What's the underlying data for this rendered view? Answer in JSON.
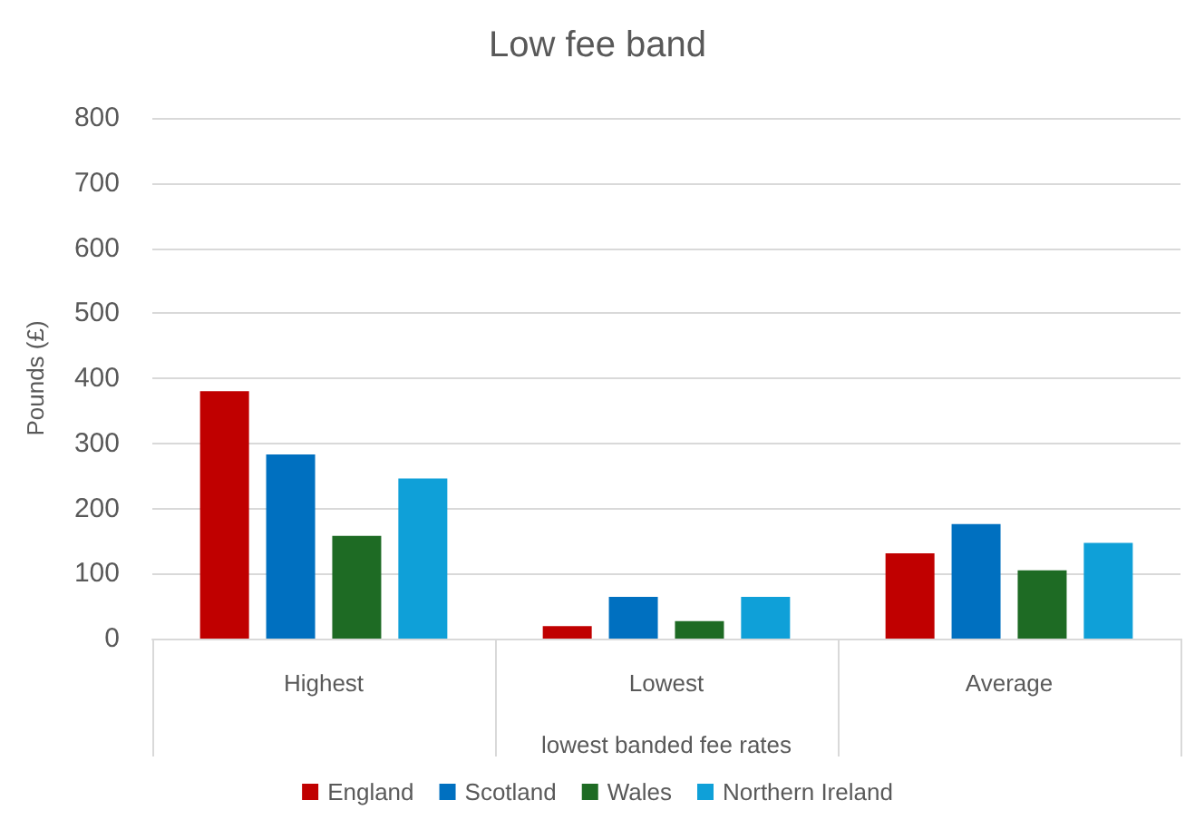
{
  "chart_data": {
    "type": "bar",
    "title": "Low fee band",
    "xlabel": "lowest banded fee rates",
    "ylabel": "Pounds (£)",
    "categories": [
      "Highest",
      "Lowest",
      "Average"
    ],
    "series": [
      {
        "name": "England",
        "color": "#c00000",
        "values": [
          380,
          19,
          131
        ]
      },
      {
        "name": "Scotland",
        "color": "#0070c0",
        "values": [
          283,
          64,
          176
        ]
      },
      {
        "name": "Wales",
        "color": "#1e6b24",
        "values": [
          158,
          27,
          105
        ]
      },
      {
        "name": "Northern Ireland",
        "color": "#0fa0d8",
        "values": [
          246,
          64,
          147
        ]
      }
    ],
    "ylim": [
      0,
      800
    ],
    "yticks": [
      0,
      100,
      200,
      300,
      400,
      500,
      600,
      700,
      800
    ],
    "grid": "y",
    "legend": "bottom"
  }
}
